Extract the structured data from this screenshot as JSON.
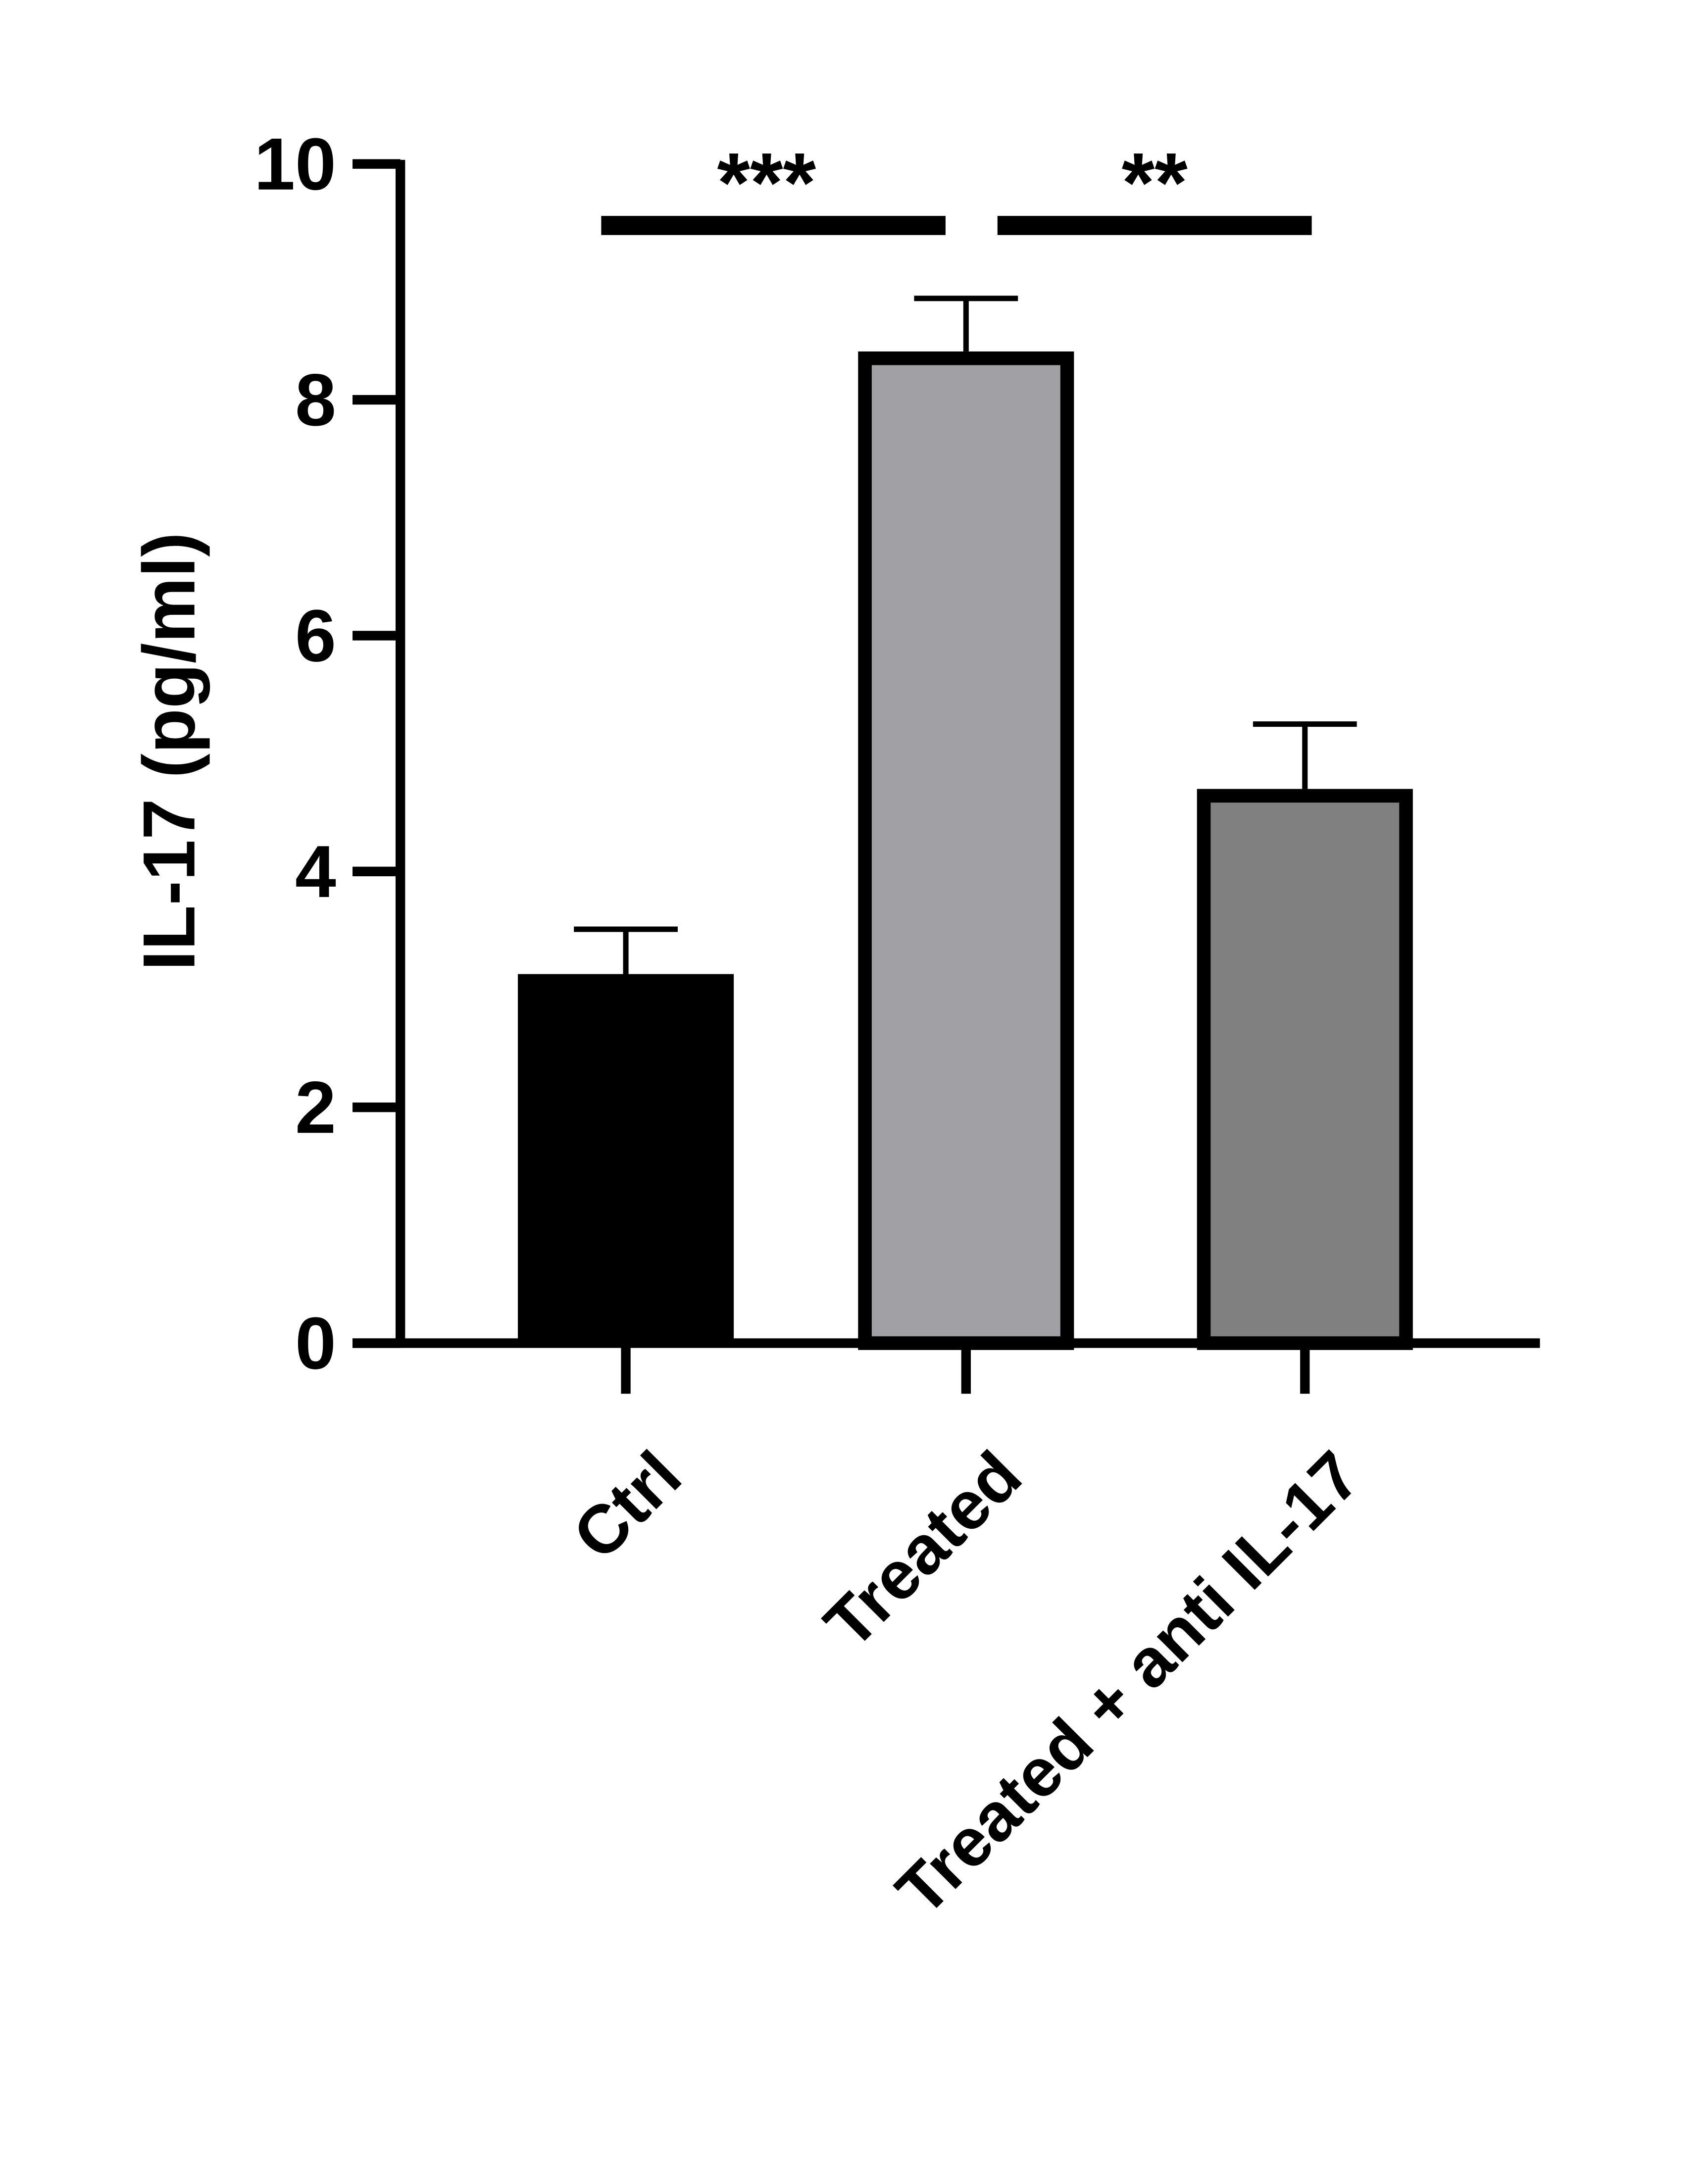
{
  "chart_data": {
    "type": "bar",
    "y_label": "IL-17 (pg/ml)",
    "categories": [
      "Ctrl",
      "Treated",
      "Treated + anti IL-17"
    ],
    "values": [
      3.13,
      8.41,
      4.7
    ],
    "errors": [
      0.38,
      0.45,
      0.55
    ],
    "colors": [
      "#000000",
      "#a0a0a5",
      "#808080"
    ],
    "ylim": [
      0,
      10
    ],
    "yticks": [
      0,
      2,
      4,
      6,
      8,
      10
    ],
    "annotations": [
      "***",
      "**"
    ]
  }
}
